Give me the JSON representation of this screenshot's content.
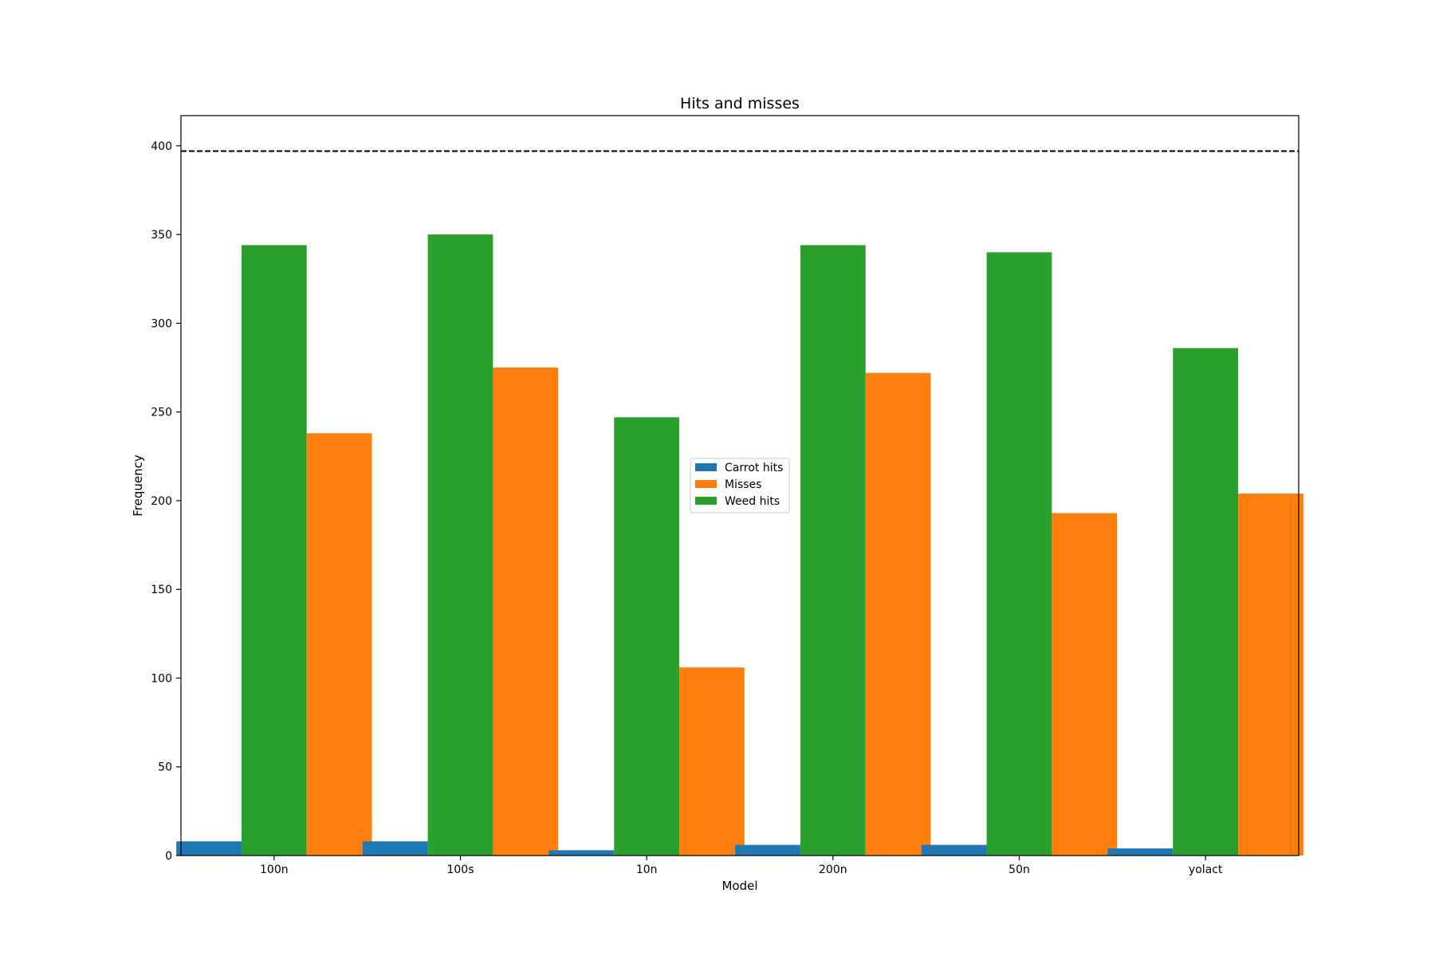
{
  "chart_data": {
    "type": "bar",
    "title": "Hits and misses",
    "xlabel": "Model",
    "ylabel": "Frequency",
    "categories": [
      "100n",
      "100s",
      "10n",
      "200n",
      "50n",
      "yolact"
    ],
    "series": [
      {
        "name": "Carrot hits",
        "color": "#1f77b4",
        "values": [
          8,
          8,
          3,
          6,
          6,
          4
        ]
      },
      {
        "name": "Weed hits",
        "color": "#2ca02c",
        "values": [
          344,
          350,
          247,
          344,
          340,
          286
        ]
      },
      {
        "name": "Misses",
        "color": "#ff7f0e",
        "values": [
          238,
          275,
          106,
          272,
          193,
          204
        ]
      }
    ],
    "legend_order": [
      "Carrot hits",
      "Misses",
      "Weed hits"
    ],
    "legend_position": "center",
    "reference_line": {
      "y": 397,
      "style": "dashed",
      "color": "#000000"
    },
    "ylim": [
      0,
      417
    ],
    "yticks": [
      0,
      50,
      100,
      150,
      200,
      250,
      300,
      350,
      400
    ],
    "grid": false
  }
}
